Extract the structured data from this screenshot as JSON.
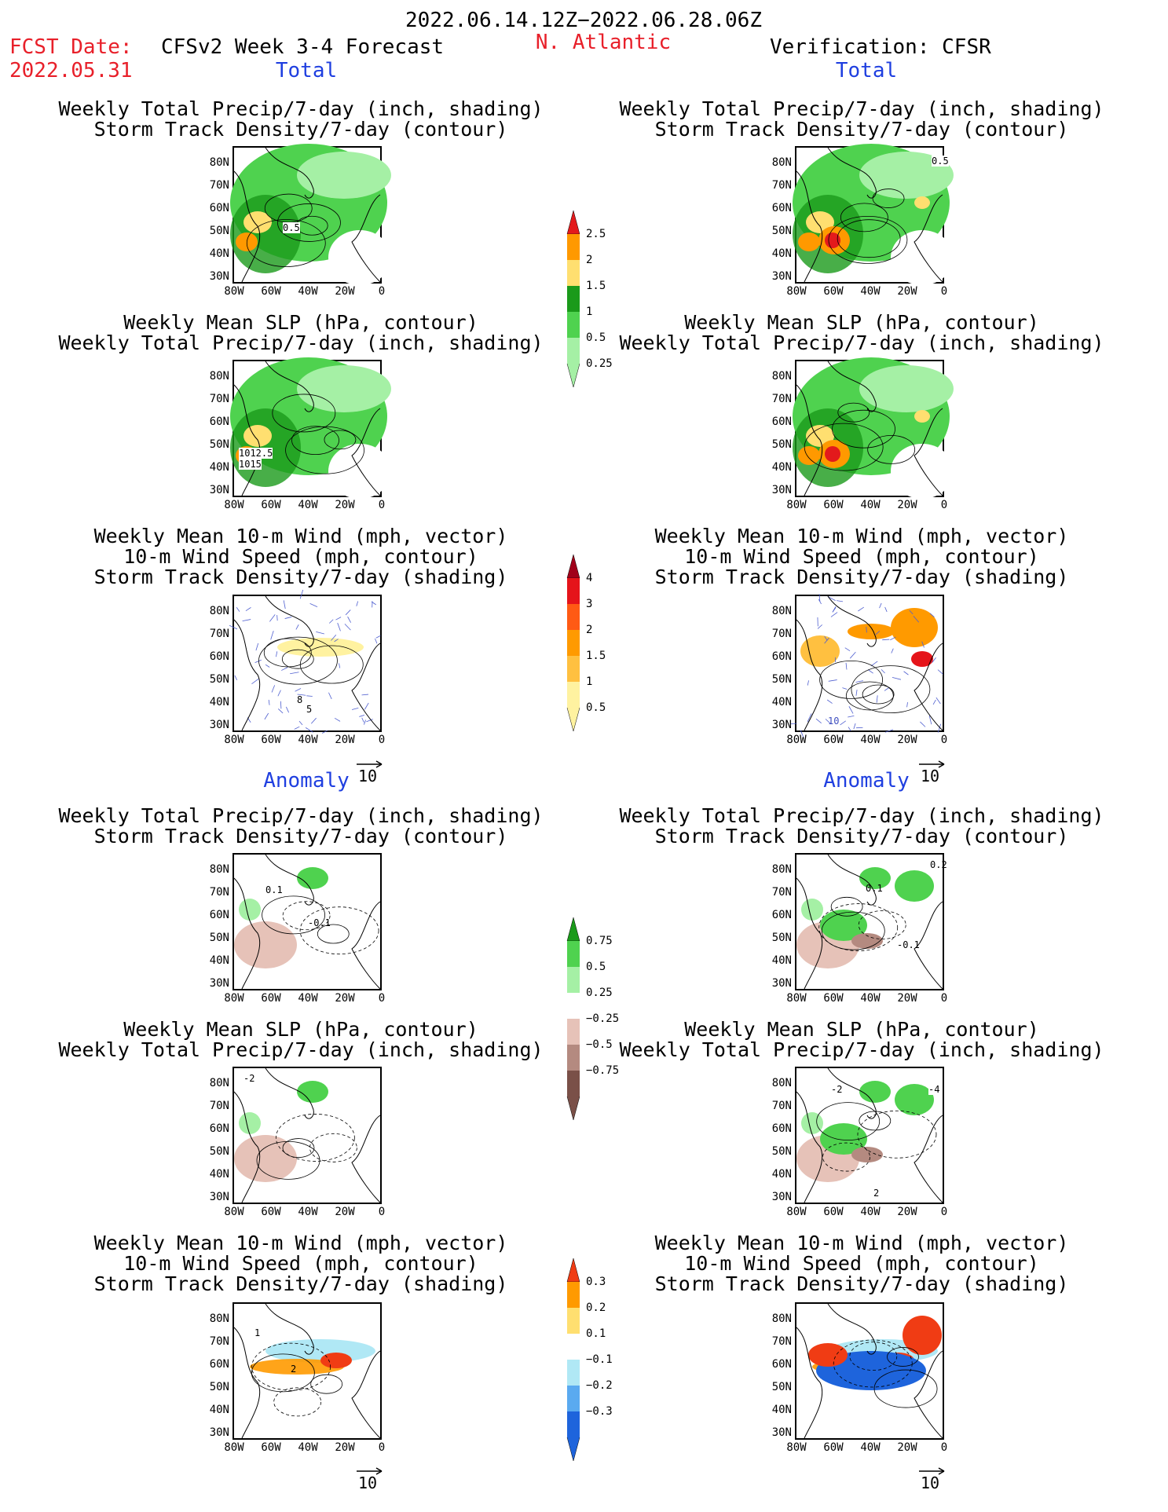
{
  "header": {
    "date_range": "2022.06.14.12Z−2022.06.28.06Z",
    "fcst_label": "FCST Date:",
    "fcst_date": "2022.05.31",
    "product": "CFSv2 Week 3-4 Forecast",
    "region": "N. Atlantic",
    "verification": "Verification: CFSR"
  },
  "sections": {
    "total": "Total",
    "anomaly": "Anomaly"
  },
  "titles": {
    "precip_track": [
      "Weekly Total Precip/7-day (inch, shading)",
      "Storm Track Density/7-day (contour)"
    ],
    "slp_precip": [
      "Weekly Mean SLP (hPa, contour)",
      "Weekly Total Precip/7-day (inch, shading)"
    ],
    "wind": [
      "Weekly Mean 10-m Wind (mph, vector)",
      "10-m Wind Speed (mph, contour)",
      "Storm Track Density/7-day (shading)"
    ]
  },
  "axes": {
    "lat": [
      "80N",
      "70N",
      "60N",
      "50N",
      "40N",
      "30N"
    ],
    "lon": [
      "80W",
      "60W",
      "40W",
      "20W",
      "0"
    ]
  },
  "vector_ref": "10",
  "colorbars": {
    "precip_total": {
      "labels": [
        "2.5",
        "2",
        "1.5",
        "1",
        "0.5",
        "0.25"
      ],
      "colors": [
        "#e31a1c",
        "#ff9900",
        "#ffdf70",
        "#1a9a1a",
        "#4fd24f",
        "#a5f0a5"
      ]
    },
    "track_total": {
      "labels": [
        "4",
        "3",
        "2",
        "1.5",
        "1",
        "0.5"
      ],
      "colors": [
        "#a0001a",
        "#e5141a",
        "#ff5a14",
        "#ff9a00",
        "#ffc040",
        "#fff2a0"
      ]
    },
    "precip_anom": {
      "labels": [
        "0.75",
        "0.5",
        "0.25",
        "−0.25",
        "−0.5",
        "−0.75"
      ],
      "colors": [
        "#1a9a1a",
        "#4fd24f",
        "#a5f0a5",
        "#ffffff",
        "#e6c2b8",
        "#b48a80",
        "#7a5048"
      ]
    },
    "track_anom": {
      "labels": [
        "0.3",
        "0.2",
        "0.1",
        "−0.1",
        "−0.2",
        "−0.3"
      ],
      "colors": [
        "#f03c14",
        "#ff9a00",
        "#ffdf70",
        "#ffffff",
        "#b0e8f5",
        "#5aaaf0",
        "#1e64dc"
      ]
    }
  },
  "panel_labels": {
    "l1": "0.5",
    "r1": "0.5",
    "l2a": "1012.5",
    "l2b": "1015",
    "l3a": "8",
    "l3b": "5",
    "r3a": "10",
    "l4a": "0.1",
    "l4b": "-0.1",
    "r4a": "0.2",
    "r4b": "0.1",
    "r4c": "-0.1",
    "l5a": "-2",
    "r5a": "-2",
    "r5b": "-4",
    "r5c": "2",
    "l6a": "1",
    "l6b": "2"
  }
}
